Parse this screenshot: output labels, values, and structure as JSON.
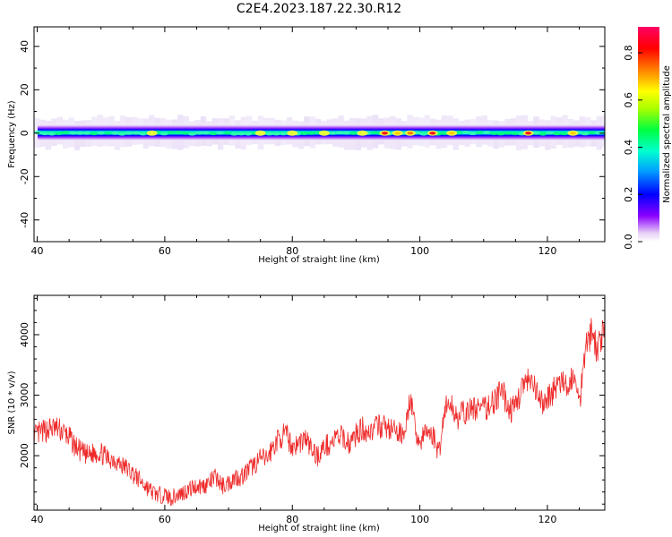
{
  "title": "C2E4.2023.187.22.30.R12",
  "chart_data": [
    {
      "type": "heatmap",
      "xlabel": "Height of straight line (km)",
      "ylabel": "Frequency (Hz)",
      "xlim": [
        39.5,
        129
      ],
      "ylim": [
        -50,
        49
      ],
      "xticks": [
        40,
        60,
        80,
        100,
        120
      ],
      "yticks": [
        -40,
        -20,
        0,
        20,
        40
      ],
      "ytick_labels": [
        "-40",
        "-20",
        "0",
        "20",
        "40"
      ],
      "center_frequency": 0,
      "band_halfwidth_hz": 2.5,
      "hotspots": [
        {
          "x": 58,
          "level": 0.6
        },
        {
          "x": 75,
          "level": 0.6
        },
        {
          "x": 80,
          "level": 0.6
        },
        {
          "x": 85,
          "level": 0.65
        },
        {
          "x": 91,
          "level": 0.65
        },
        {
          "x": 94.5,
          "level": 0.95
        },
        {
          "x": 96.5,
          "level": 0.7
        },
        {
          "x": 98.5,
          "level": 0.85
        },
        {
          "x": 102,
          "level": 1.0
        },
        {
          "x": 105,
          "level": 0.7
        },
        {
          "x": 117,
          "level": 0.9
        },
        {
          "x": 124,
          "level": 0.75
        }
      ],
      "colorbar": {
        "label": "Normalized spectral amplitude",
        "ticks": [
          0.0,
          0.2,
          0.4,
          0.6,
          0.8
        ],
        "tick_labels": [
          "0.0",
          "0.2",
          "0.4",
          "0.6",
          "0.8"
        ],
        "range": [
          0,
          0.91
        ]
      },
      "grid": false
    },
    {
      "type": "line",
      "xlabel": "Height of straight line (km)",
      "ylabel": "SNR (10 * v/v)",
      "xlim": [
        39.5,
        129
      ],
      "ylim": [
        1100,
        4650
      ],
      "xticks": [
        40,
        60,
        80,
        100,
        120
      ],
      "yticks": [
        2000,
        3000,
        4000
      ],
      "ytick_labels": [
        "2000",
        "3000",
        "4000"
      ],
      "series": [
        {
          "color": "#ee2a2a",
          "x": [
            39.5,
            40,
            41,
            42,
            43,
            44,
            45,
            46,
            47,
            48,
            49,
            50,
            51,
            52,
            53,
            54,
            55,
            56,
            57,
            58,
            59,
            60,
            61,
            62,
            63,
            64,
            65,
            66,
            67,
            68,
            69,
            70,
            71,
            72,
            73,
            74,
            75,
            76,
            77,
            78,
            79,
            80,
            81,
            82,
            83,
            84,
            85,
            86,
            87,
            88,
            89,
            90,
            91,
            92,
            93,
            94,
            95,
            96,
            97,
            98,
            98.5,
            99,
            100,
            101,
            102,
            103,
            104,
            105,
            106,
            107,
            108,
            109,
            110,
            111,
            112,
            113,
            114,
            115,
            116,
            117,
            118,
            119,
            120,
            121,
            122,
            123,
            124,
            125,
            126,
            127,
            128,
            129
          ],
          "values": [
            2300,
            2350,
            2400,
            2450,
            2450,
            2400,
            2300,
            2150,
            2050,
            2000,
            2050,
            2050,
            1950,
            1950,
            1850,
            1800,
            1700,
            1600,
            1500,
            1400,
            1350,
            1350,
            1300,
            1350,
            1400,
            1450,
            1500,
            1500,
            1550,
            1650,
            1500,
            1550,
            1650,
            1650,
            1750,
            1850,
            1950,
            1950,
            2150,
            2300,
            2350,
            2150,
            2200,
            2300,
            2100,
            2000,
            2150,
            2200,
            2300,
            2300,
            2200,
            2350,
            2450,
            2400,
            2450,
            2500,
            2450,
            2400,
            2350,
            2550,
            3000,
            2550,
            2200,
            2400,
            2350,
            2050,
            2850,
            2800,
            2650,
            2700,
            2750,
            2800,
            2750,
            2850,
            2950,
            3050,
            2750,
            2800,
            3150,
            3200,
            3100,
            2850,
            2950,
            3100,
            3200,
            3100,
            3350,
            2850,
            3900,
            4050,
            3700,
            4300
          ]
        }
      ],
      "grid": false
    }
  ]
}
